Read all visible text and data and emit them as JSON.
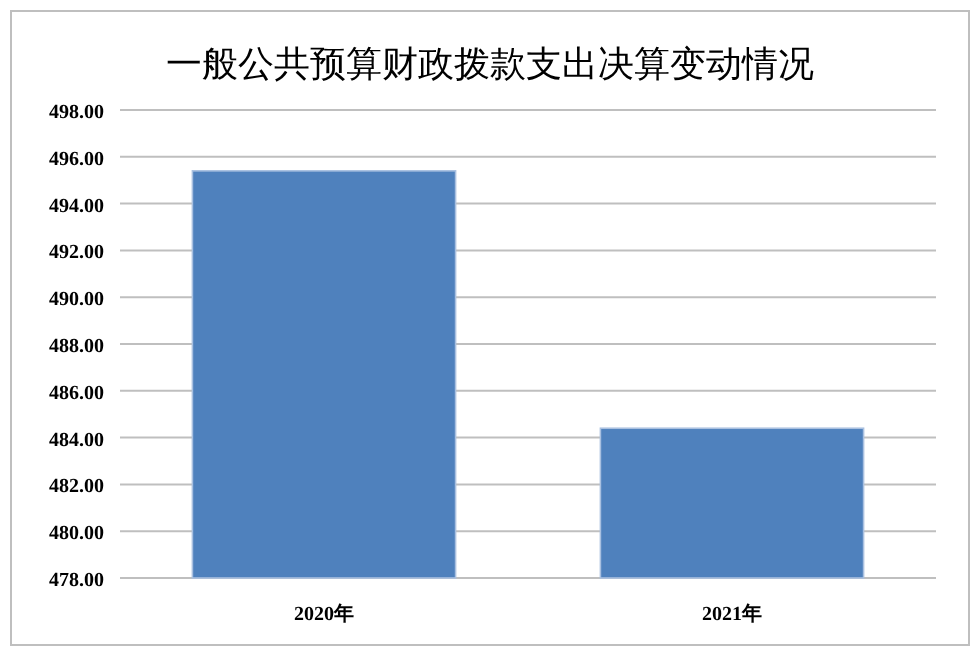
{
  "chart_data": {
    "type": "bar",
    "title": "一般公共预算财政拨款支出决算变动情况",
    "categories": [
      "2020年",
      "2021年"
    ],
    "values": [
      495.4,
      484.4
    ],
    "color": "#4f81bd",
    "ylim": [
      478,
      498
    ],
    "yticks": [
      {
        "value": 478,
        "label": "478.00"
      },
      {
        "value": 480,
        "label": "480.00"
      },
      {
        "value": 482,
        "label": "482.00"
      },
      {
        "value": 484,
        "label": "484.00"
      },
      {
        "value": 486,
        "label": "486.00"
      },
      {
        "value": 488,
        "label": "488.00"
      },
      {
        "value": 490,
        "label": "490.00"
      },
      {
        "value": 492,
        "label": "492.00"
      },
      {
        "value": 494,
        "label": "494.00"
      },
      {
        "value": 496,
        "label": "496.00"
      },
      {
        "value": 498,
        "label": "498.00"
      }
    ],
    "grid": "y"
  }
}
